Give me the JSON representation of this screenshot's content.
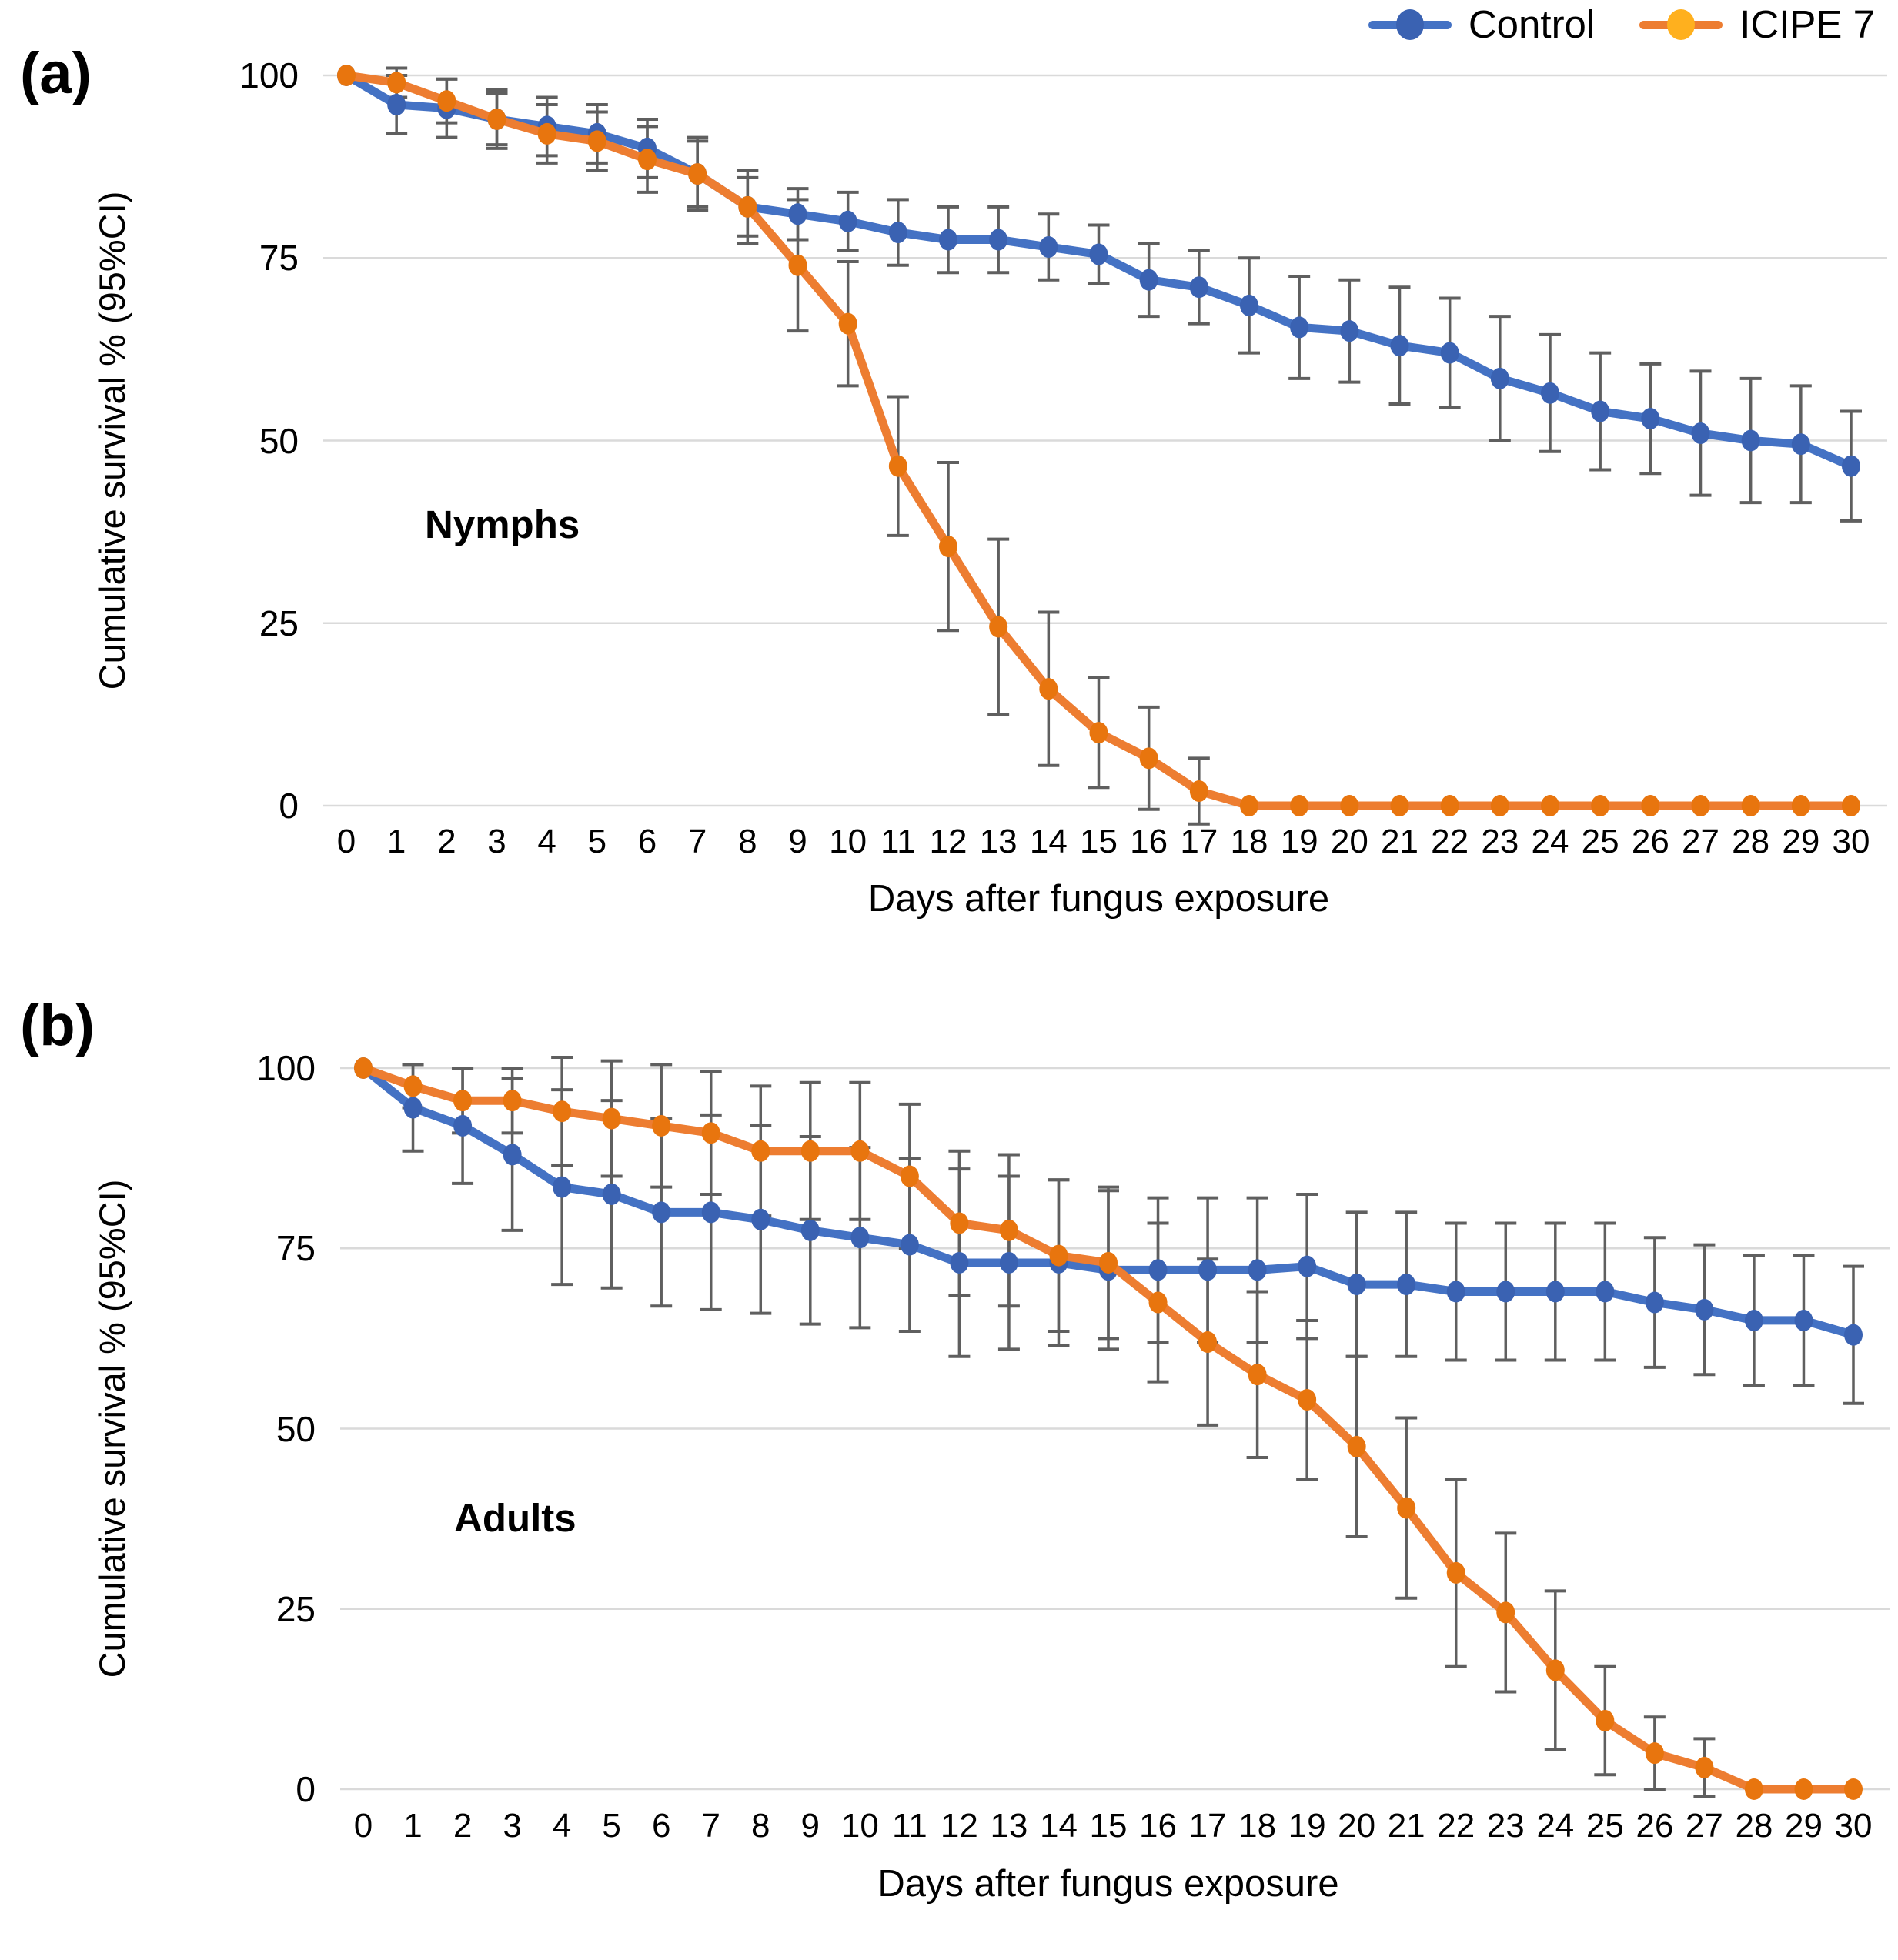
{
  "legend": {
    "items": [
      {
        "label": "Control",
        "line_color": "#4472C4",
        "dot_color": "#3A62B2"
      },
      {
        "label": "ICIPE 7",
        "line_color": "#ED7D31",
        "dot_color": "#FFB01E"
      }
    ]
  },
  "chart_data": [
    {
      "type": "line",
      "panel_tag": "(a)",
      "group_label": "Nymphs",
      "xlabel": "Days after fungus exposure",
      "ylabel": "Cumulative survival % (95%CI)",
      "ylim": [
        0,
        100
      ],
      "yticks": [
        100,
        75,
        50,
        25,
        0
      ],
      "grid": "horizontal",
      "legend_position": "top-right",
      "x": [
        0,
        1,
        2,
        3,
        4,
        5,
        6,
        7,
        8,
        9,
        10,
        11,
        12,
        13,
        14,
        15,
        16,
        17,
        18,
        19,
        20,
        21,
        22,
        23,
        24,
        25,
        26,
        27,
        28,
        29,
        30
      ],
      "series": [
        {
          "name": "Control",
          "line_color": "#4472C4",
          "marker_color": "#3A62B2",
          "values": [
            100,
            96,
            95.5,
            94,
            93,
            92,
            90,
            86.5,
            82,
            81,
            80,
            78.5,
            77.5,
            77.5,
            76.5,
            75.5,
            72,
            71,
            68.5,
            65.5,
            65,
            63,
            62,
            58.5,
            56.5,
            54,
            53,
            51,
            50,
            49.5,
            46.5
          ],
          "ci95": [
            0,
            4,
            4,
            4,
            4,
            4,
            4,
            4.5,
            4,
            3.5,
            4,
            4.5,
            4.5,
            4.5,
            4.5,
            4,
            5,
            5,
            6.5,
            7,
            7,
            8,
            7.5,
            8.5,
            8,
            8,
            7.5,
            8.5,
            8.5,
            8,
            7.5
          ]
        },
        {
          "name": "ICIPE 7",
          "line_color": "#ED7D31",
          "marker_color": "#E8750E",
          "values": [
            100,
            99,
            96.5,
            94,
            92,
            91,
            88.5,
            86.5,
            82,
            74,
            66,
            46.5,
            35.5,
            24.5,
            16,
            10,
            6.5,
            2,
            0,
            0,
            0,
            0,
            0,
            0,
            0,
            0,
            0,
            0,
            0,
            0,
            0
          ],
          "ci95": [
            0,
            2,
            3,
            3.5,
            4,
            4,
            4.5,
            5,
            5,
            9,
            8.5,
            9.5,
            11.5,
            12,
            10.5,
            7.5,
            7,
            4.5,
            0,
            0,
            0,
            0,
            0,
            0,
            0,
            0,
            0,
            0,
            0,
            0,
            0
          ]
        }
      ]
    },
    {
      "type": "line",
      "panel_tag": "(b)",
      "group_label": "Adults",
      "xlabel": "Days after fungus exposure",
      "ylabel": "Cumulative survival % (95%CI)",
      "ylim": [
        0,
        100
      ],
      "yticks": [
        100,
        75,
        50,
        25,
        0
      ],
      "grid": "horizontal",
      "legend_position": "none",
      "x": [
        0,
        1,
        2,
        3,
        4,
        5,
        6,
        7,
        8,
        9,
        10,
        11,
        12,
        13,
        14,
        15,
        16,
        17,
        18,
        19,
        20,
        21,
        22,
        23,
        24,
        25,
        26,
        27,
        28,
        29,
        30
      ],
      "series": [
        {
          "name": "Control",
          "line_color": "#4472C4",
          "marker_color": "#3A62B2",
          "values": [
            100,
            94.5,
            92,
            88,
            83.5,
            82.5,
            80,
            80,
            79,
            77.5,
            76.5,
            75.5,
            73,
            73,
            73,
            72,
            72,
            72,
            72,
            72.5,
            70,
            70,
            69,
            69,
            69,
            69,
            67.5,
            66.5,
            65,
            65,
            63
          ],
          "ci95": [
            0,
            6,
            8,
            10.5,
            13.5,
            13,
            13,
            13.5,
            13,
            13,
            12.5,
            12,
            13,
            12,
            11.5,
            11,
            10,
            10,
            10,
            10,
            10,
            10,
            9.5,
            9.5,
            9.5,
            9.5,
            9,
            9,
            9,
            9,
            9.5
          ]
        },
        {
          "name": "ICIPE 7",
          "line_color": "#ED7D31",
          "marker_color": "#E8750E",
          "values": [
            100,
            97.5,
            95.5,
            95.5,
            94,
            93,
            92,
            91,
            88.5,
            88.5,
            88.5,
            85,
            78.5,
            77.5,
            74,
            73,
            67.5,
            62,
            57.5,
            54,
            47.5,
            39,
            30,
            24.5,
            16.5,
            9.5,
            5,
            3,
            0,
            0,
            0
          ],
          "ci95": [
            0,
            3,
            4.5,
            4.5,
            7.5,
            8,
            8.5,
            8.5,
            9,
            9.5,
            9.5,
            10,
            10,
            10.5,
            10.5,
            10.5,
            11,
            11.5,
            11.5,
            11,
            12.5,
            12.5,
            13,
            11,
            11,
            7.5,
            5,
            4,
            0,
            0,
            0
          ]
        }
      ]
    }
  ]
}
